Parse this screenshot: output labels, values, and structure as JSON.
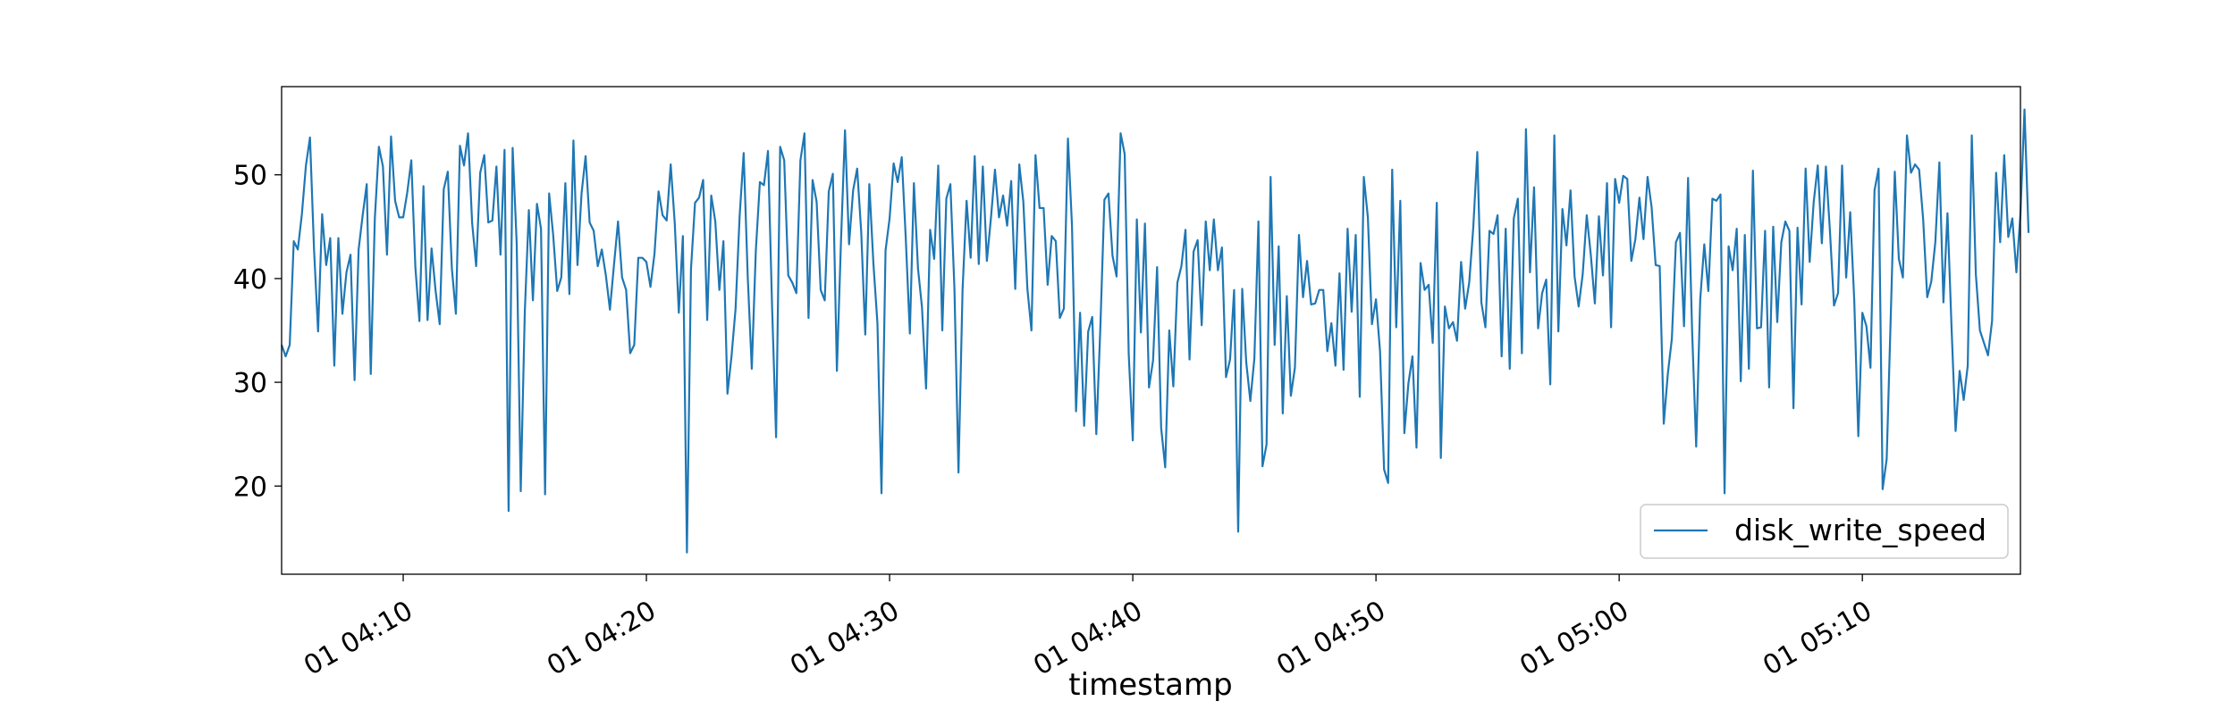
{
  "chart_data": {
    "type": "line",
    "title": "",
    "xlabel": "timestamp",
    "ylabel": "",
    "xlim": [
      "2024-01-01T04:05:00",
      "2024-01-01T05:16:30"
    ],
    "ylim": [
      11.5,
      58.5
    ],
    "yticks": [
      20,
      30,
      40,
      50
    ],
    "xticks": [
      {
        "t": "2024-01-01T04:10:00",
        "label": "01 04:10"
      },
      {
        "t": "2024-01-01T04:20:00",
        "label": "01 04:20"
      },
      {
        "t": "2024-01-01T04:30:00",
        "label": "01 04:30"
      },
      {
        "t": "2024-01-01T04:40:00",
        "label": "01 04:40"
      },
      {
        "t": "2024-01-01T04:50:00",
        "label": "01 04:50"
      },
      {
        "t": "2024-01-01T05:00:00",
        "label": "01 05:00"
      },
      {
        "t": "2024-01-01T05:10:00",
        "label": "01 05:10"
      }
    ],
    "grid": false,
    "legend_position": "lower-right",
    "series": [
      {
        "name": "disk_write_speed",
        "color": "#1f77b4",
        "x_start": "2024-01-01T04:05:00",
        "x_step_seconds": 10,
        "values": [
          33.6,
          32.5,
          33.6,
          43.6,
          42.8,
          46.2,
          50.9,
          53.6,
          42.8,
          34.9,
          46.2,
          41.3,
          43.9,
          31.6,
          43.9,
          36.6,
          40.6,
          42.3,
          30.2,
          42.8,
          46.1,
          49.1,
          30.8,
          45.8,
          52.7,
          50.8,
          42.3,
          53.7,
          47.5,
          45.9,
          45.9,
          48.3,
          51.4,
          41.1,
          35.9,
          48.9,
          36.0,
          42.9,
          38.8,
          35.6,
          48.6,
          50.3,
          41.0,
          36.6,
          52.8,
          50.9,
          54.0,
          45.4,
          41.2,
          50.2,
          51.9,
          45.4,
          45.6,
          50.8,
          42.3,
          52.4,
          17.6,
          52.6,
          43.4,
          19.5,
          36.8,
          46.6,
          37.9,
          47.2,
          44.8,
          19.2,
          48.2,
          44.2,
          38.8,
          40.1,
          49.2,
          38.5,
          53.3,
          41.3,
          48.2,
          51.8,
          45.4,
          44.6,
          41.2,
          42.8,
          40.3,
          37.0,
          41.3,
          45.5,
          40.1,
          38.9,
          32.8,
          33.6,
          42.0,
          42.0,
          41.6,
          39.2,
          42.4,
          48.4,
          46.1,
          45.6,
          51.0,
          45.3,
          36.7,
          44.1,
          13.6,
          40.9,
          47.3,
          47.8,
          49.5,
          36.0,
          48.0,
          45.5,
          38.9,
          43.6,
          28.9,
          32.5,
          37.1,
          46.0,
          52.1,
          40.2,
          31.3,
          42.7,
          49.3,
          49.0,
          52.3,
          37.4,
          24.7,
          52.7,
          51.4,
          40.3,
          39.6,
          38.6,
          51.4,
          54.0,
          36.2,
          49.5,
          47.4,
          38.9,
          37.9,
          48.4,
          50.1,
          31.1,
          43.5,
          54.3,
          43.3,
          48.5,
          50.6,
          44.5,
          34.6,
          49.1,
          41.5,
          35.7,
          19.3,
          42.7,
          45.8,
          51.1,
          49.3,
          51.7,
          43.8,
          34.7,
          49.2,
          41.0,
          37.2,
          29.4,
          44.7,
          41.9,
          50.9,
          35.0,
          47.7,
          49.1,
          39.0,
          21.3,
          38.9,
          47.5,
          42.0,
          51.8,
          41.4,
          50.8,
          41.7,
          45.8,
          50.5,
          45.9,
          48.0,
          45.1,
          49.4,
          39.0,
          51.0,
          47.4,
          39.0,
          35.0,
          51.9,
          46.8,
          46.8,
          39.4,
          44.1,
          43.6,
          36.2,
          37.1,
          53.5,
          45.1,
          27.2,
          36.7,
          25.8,
          34.9,
          36.3,
          25.0,
          35.3,
          47.6,
          48.2,
          42.2,
          40.2,
          54.0,
          52.0,
          32.7,
          24.4,
          45.7,
          34.8,
          45.3,
          29.5,
          32.1,
          41.1,
          25.6,
          21.8,
          35.0,
          29.6,
          39.6,
          41.2,
          44.7,
          32.2,
          42.6,
          43.7,
          35.5,
          45.5,
          40.8,
          45.7,
          40.8,
          43.0,
          30.5,
          32.2,
          38.9,
          15.6,
          39.0,
          31.9,
          28.2,
          32.3,
          45.5,
          21.9,
          24.0,
          49.8,
          33.6,
          43.1,
          27.0,
          38.3,
          28.7,
          31.4,
          44.2,
          38.2,
          41.7,
          37.5,
          37.6,
          38.9,
          38.9,
          33.0,
          35.7,
          31.6,
          40.5,
          31.2,
          44.8,
          36.8,
          44.2,
          28.6,
          49.8,
          45.9,
          35.6,
          38.0,
          33.0,
          21.6,
          20.3,
          50.5,
          35.3,
          47.5,
          25.1,
          29.9,
          32.5,
          23.7,
          41.5,
          38.9,
          39.4,
          33.8,
          47.3,
          22.7,
          37.3,
          35.2,
          35.8,
          34.0,
          41.6,
          37.1,
          39.6,
          44.9,
          52.2,
          37.7,
          35.3,
          44.6,
          44.3,
          46.1,
          32.5,
          44.8,
          31.3,
          45.8,
          47.7,
          32.8,
          54.4,
          40.6,
          48.8,
          35.2,
          38.6,
          39.9,
          29.8,
          53.8,
          34.9,
          46.7,
          43.2,
          48.5,
          40.2,
          37.3,
          40.4,
          46.1,
          42.3,
          37.6,
          46.0,
          40.3,
          49.2,
          35.3,
          49.6,
          47.3,
          49.9,
          49.6,
          41.7,
          43.8,
          47.8,
          43.8,
          49.8,
          46.9,
          41.3,
          41.2,
          26.0,
          30.8,
          34.2,
          43.5,
          44.4,
          35.4,
          49.7,
          34.9,
          23.8,
          38.0,
          43.3,
          38.8,
          47.7,
          47.5,
          48.1,
          19.3,
          43.1,
          40.8,
          44.8,
          30.1,
          44.2,
          31.3,
          50.4,
          35.2,
          35.3,
          44.6,
          29.5,
          45.0,
          35.8,
          43.5,
          45.5,
          44.6,
          27.5,
          44.9,
          37.5,
          50.6,
          41.6,
          47.4,
          50.9,
          43.4,
          50.8,
          44.6,
          37.4,
          38.6,
          50.9,
          40.1,
          46.4,
          37.9,
          24.8,
          36.7,
          35.4,
          31.4,
          48.5,
          50.6,
          19.7,
          22.6,
          36.3,
          50.3,
          41.9,
          40.1,
          53.8,
          50.2,
          51.0,
          50.5,
          45.7,
          38.2,
          39.7,
          43.5,
          51.2,
          37.7,
          46.3,
          35.3,
          25.3,
          31.1,
          28.3,
          31.6,
          53.8,
          40.4,
          35.0,
          33.8,
          32.6,
          35.9,
          50.2,
          43.5,
          51.9,
          44.0,
          45.8,
          40.6,
          46.2,
          56.3,
          44.4
        ]
      }
    ]
  }
}
